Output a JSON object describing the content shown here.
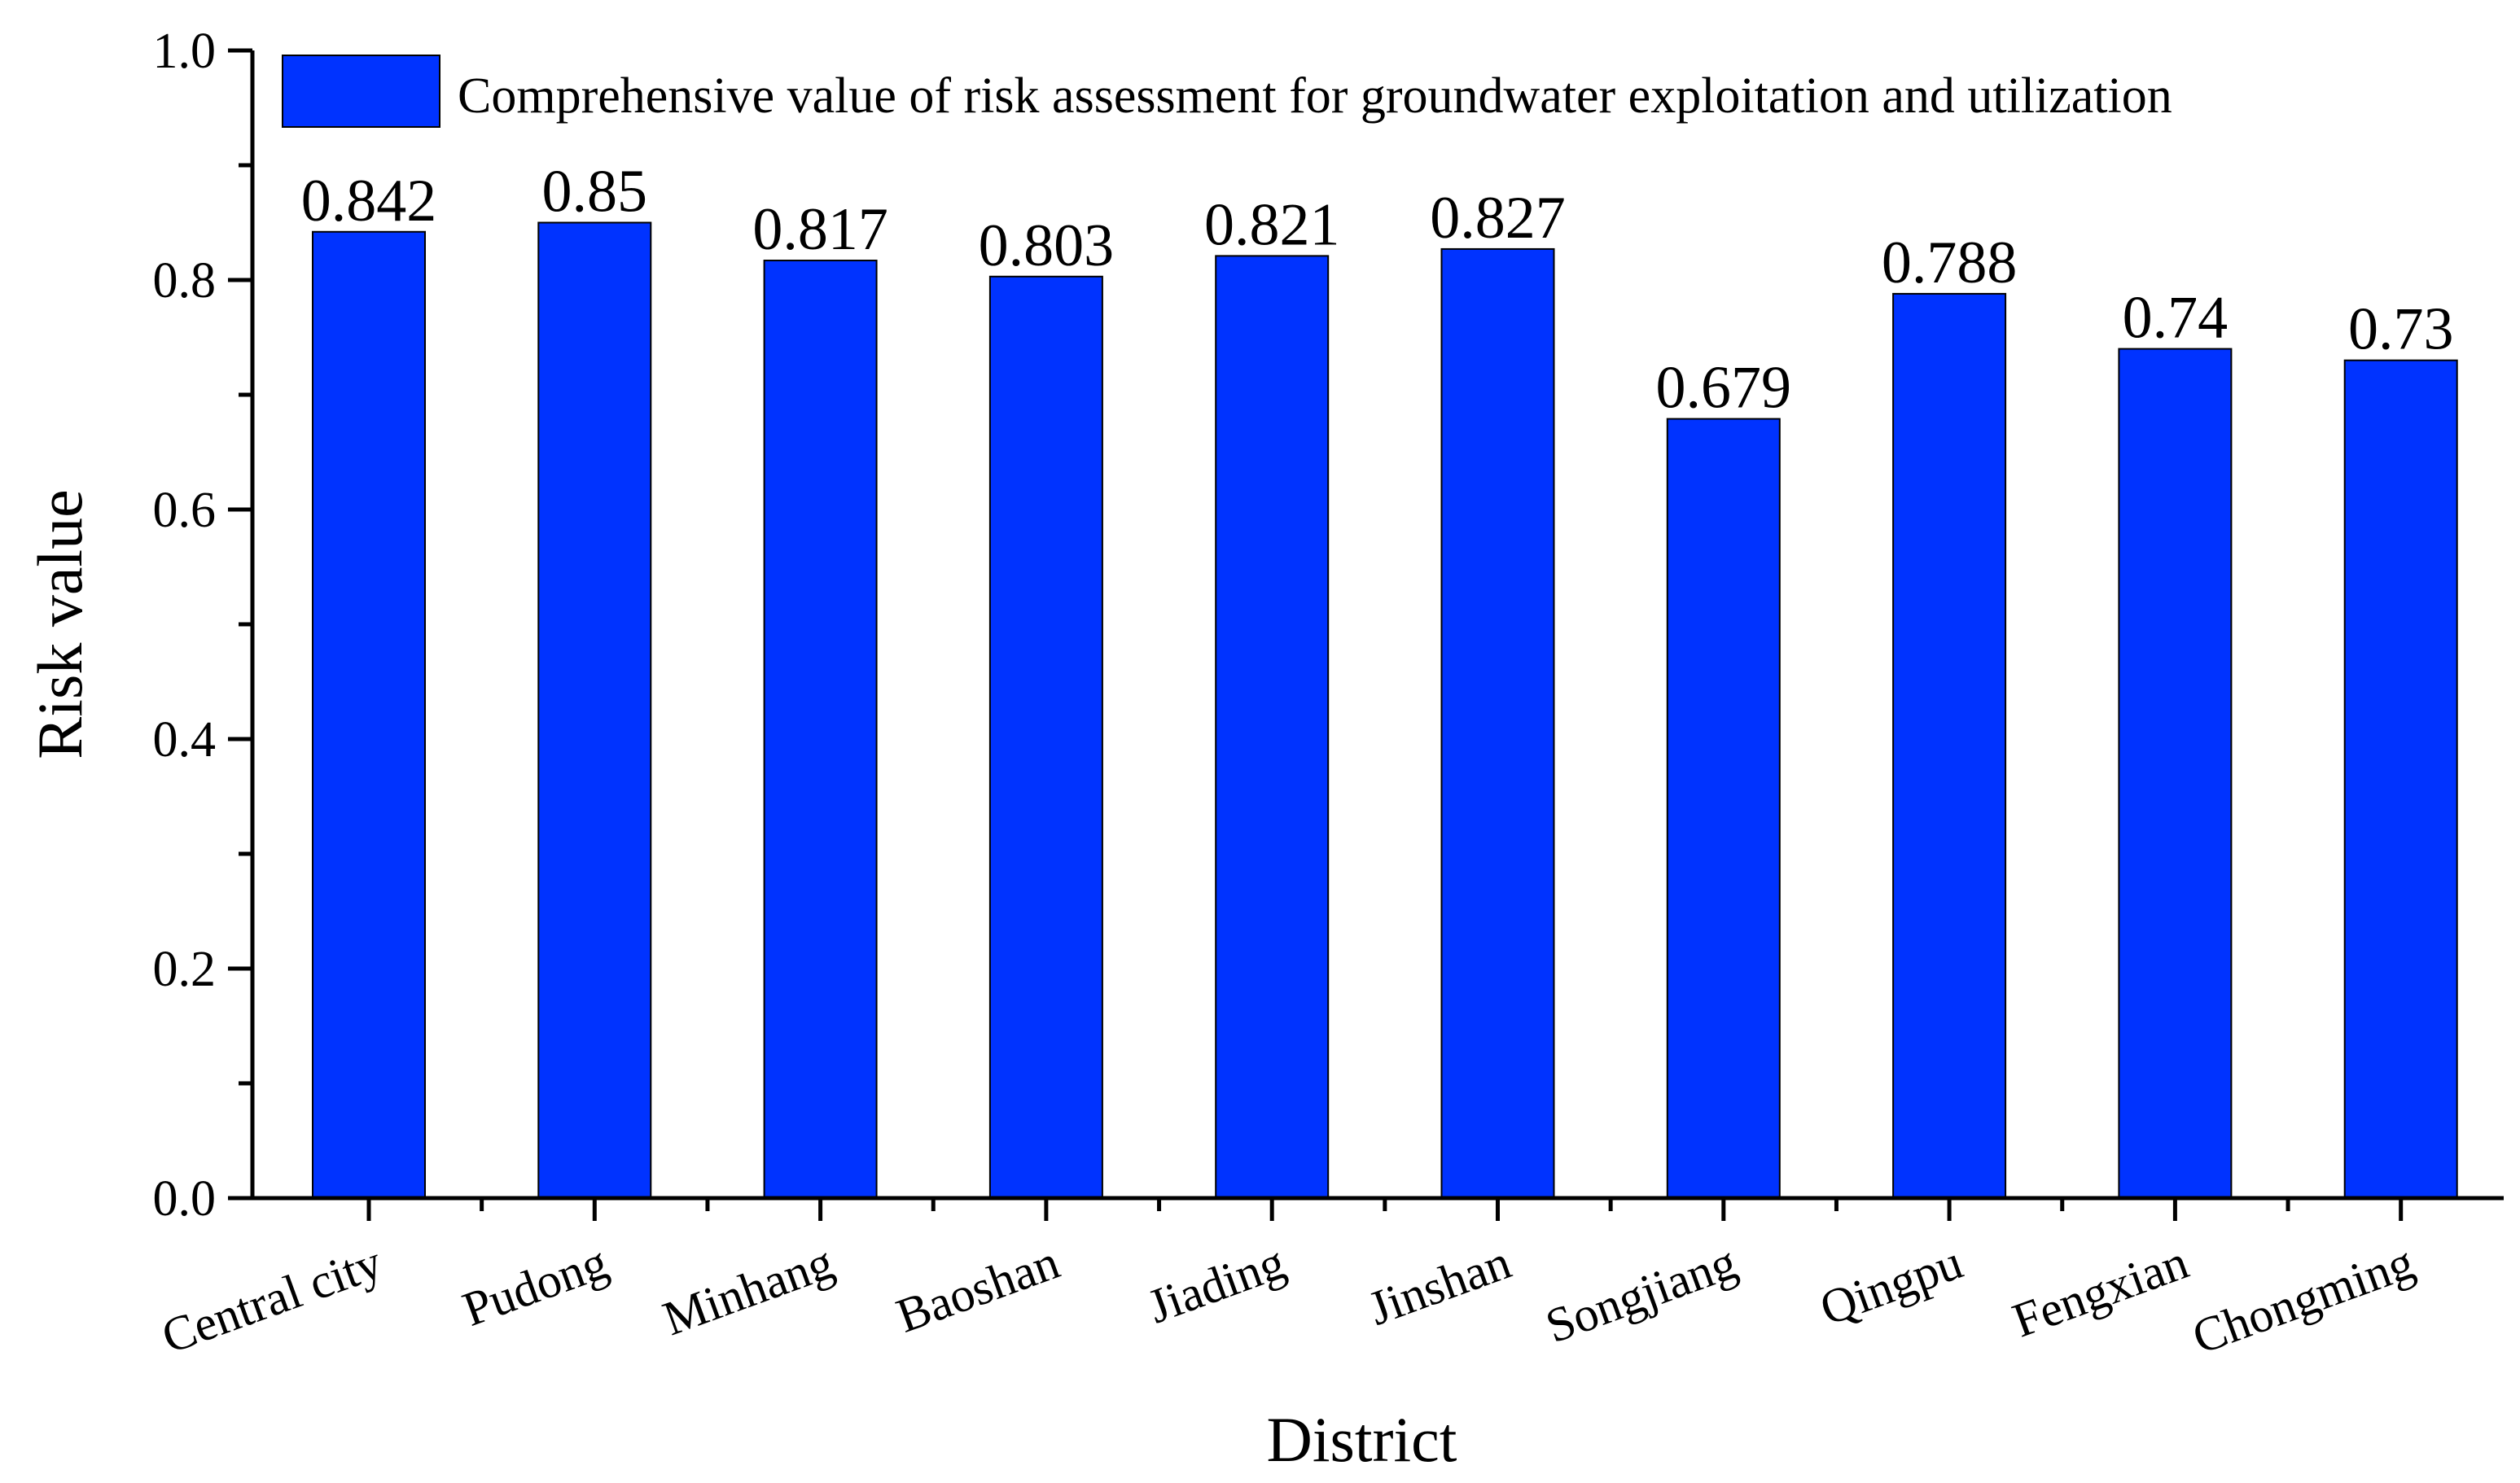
{
  "chart_data": {
    "type": "bar",
    "title": "",
    "xlabel": "District",
    "ylabel": "Risk value",
    "ylim": [
      0,
      1.0
    ],
    "yticks": [
      "0.0",
      "0.2",
      "0.4",
      "0.6",
      "0.8",
      "1.0"
    ],
    "categories": [
      "Central city",
      "Pudong",
      "Minhang",
      "Baoshan",
      "Jiading",
      "Jinshan",
      "Songjiang",
      "Qingpu",
      "Fengxian",
      "Chongming"
    ],
    "series": [
      {
        "name": "Comprehensive value of risk assessment for groundwater exploitation and utilization",
        "values": [
          0.842,
          0.85,
          0.817,
          0.803,
          0.821,
          0.827,
          0.679,
          0.788,
          0.74,
          0.73
        ],
        "labels": [
          "0.842",
          "0.85",
          "0.817",
          "0.803",
          "0.821",
          "0.827",
          "0.679",
          "0.788",
          "0.74",
          "0.73"
        ]
      }
    ],
    "bar_color": "#0033ff",
    "legend_position": "top"
  }
}
